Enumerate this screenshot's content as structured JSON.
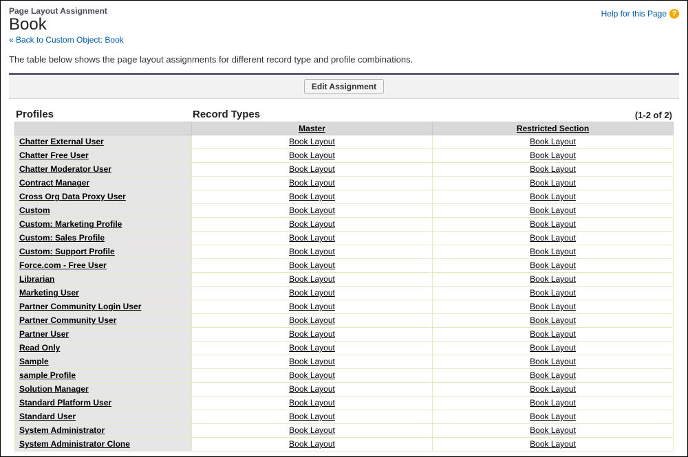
{
  "header": {
    "eyebrow": "Page Layout Assignment",
    "title": "Book",
    "help_label": "Help for this Page",
    "back_link_label": "« Back to Custom Object: Book"
  },
  "description": "The table below shows the page layout assignments for different record type and profile combinations.",
  "toolbar": {
    "edit_label": "Edit Assignment"
  },
  "labels": {
    "record_types": "Record Types",
    "profiles": "Profiles",
    "count": "(1-2 of 2)"
  },
  "columns": {
    "profile_col_width": 257,
    "record_types": [
      "Master",
      "Restricted Section"
    ]
  },
  "layout_value": "Book Layout",
  "profiles": [
    "Chatter External User",
    "Chatter Free User",
    "Chatter Moderator User",
    "Contract Manager",
    "Cross Org Data Proxy User",
    "Custom",
    "Custom: Marketing Profile",
    "Custom: Sales Profile",
    "Custom: Support Profile",
    "Force.com - Free User",
    "Librarian",
    "Marketing User",
    "Partner Community Login User",
    "Partner Community User",
    "Partner User",
    "Read Only",
    "Sample",
    "sample Profile",
    "Solution Manager",
    "Standard Platform User",
    "Standard User",
    "System Administrator",
    "System Administrator Clone"
  ],
  "colors": {
    "link": "#015ba7",
    "header_bg": "#d9d9d9",
    "profile_bg": "#e6e6e6",
    "cell_border": "#e8e8c9",
    "divider": "#5c5c7a",
    "help_icon_bg": "#f7a700"
  }
}
